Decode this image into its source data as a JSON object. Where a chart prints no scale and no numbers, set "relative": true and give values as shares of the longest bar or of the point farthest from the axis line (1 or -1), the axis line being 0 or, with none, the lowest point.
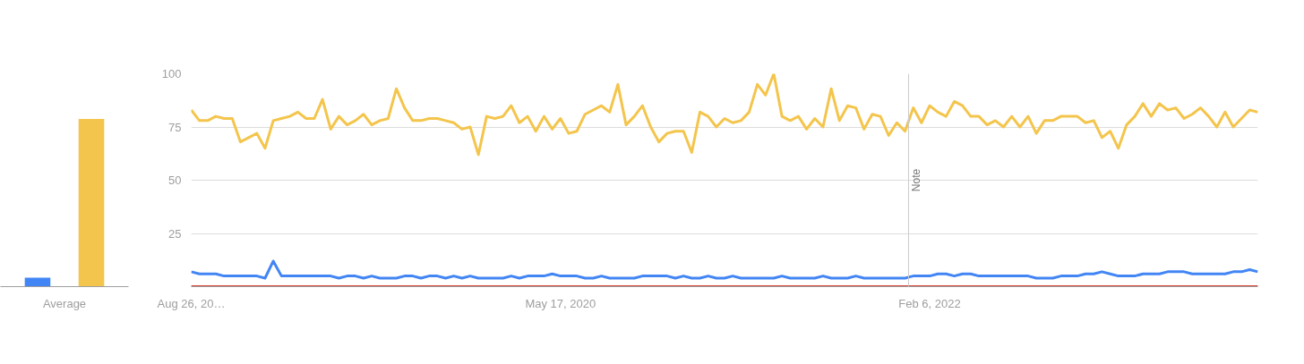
{
  "chart_data": [
    {
      "type": "bar",
      "relative": true,
      "categories": [
        "Average"
      ],
      "series": [
        {
          "color": "#4285f4",
          "values": [
            0.053
          ]
        },
        {
          "color": "#f4c54c",
          "values": [
            1
          ]
        }
      ]
    },
    {
      "type": "line",
      "grid": "y",
      "xlim": [
        "2018-08-26",
        "2023-08-20"
      ],
      "ylim": [
        0,
        100
      ],
      "yticks": [
        25,
        50,
        75,
        100
      ],
      "xticks": [
        {
          "value": "2018-08-26",
          "label": "Aug 26, 20…"
        },
        {
          "value": "2020-05-17",
          "label": "May 17, 2020"
        },
        {
          "value": "2022-02-06",
          "label": "Feb 6, 2022"
        }
      ],
      "ref_lines": [
        {
          "axis": "x",
          "value": "2022-01-01",
          "label": "Note",
          "color": "#cccccc"
        }
      ],
      "x": [
        "2018-08-26",
        "2018-09-09",
        "2018-09-23",
        "2018-10-07",
        "2018-10-21",
        "2018-11-04",
        "2018-11-18",
        "2018-12-02",
        "2018-12-16",
        "2018-12-30",
        "2019-01-13",
        "2019-01-27",
        "2019-02-10",
        "2019-02-24",
        "2019-03-10",
        "2019-03-24",
        "2019-04-07",
        "2019-04-21",
        "2019-05-05",
        "2019-05-19",
        "2019-06-02",
        "2019-06-16",
        "2019-06-30",
        "2019-07-14",
        "2019-07-28",
        "2019-08-11",
        "2019-08-25",
        "2019-09-08",
        "2019-09-22",
        "2019-10-06",
        "2019-10-20",
        "2019-11-03",
        "2019-11-17",
        "2019-12-01",
        "2019-12-15",
        "2019-12-29",
        "2020-01-12",
        "2020-01-26",
        "2020-02-09",
        "2020-02-23",
        "2020-03-08",
        "2020-03-22",
        "2020-04-05",
        "2020-04-19",
        "2020-05-03",
        "2020-05-17",
        "2020-05-31",
        "2020-06-14",
        "2020-06-28",
        "2020-07-12",
        "2020-07-26",
        "2020-08-09",
        "2020-08-23",
        "2020-09-06",
        "2020-09-20",
        "2020-10-04",
        "2020-10-18",
        "2020-11-01",
        "2020-11-15",
        "2020-11-29",
        "2020-12-13",
        "2020-12-27",
        "2021-01-10",
        "2021-01-24",
        "2021-02-07",
        "2021-02-21",
        "2021-03-07",
        "2021-03-21",
        "2021-04-04",
        "2021-04-18",
        "2021-05-02",
        "2021-05-16",
        "2021-05-30",
        "2021-06-13",
        "2021-06-27",
        "2021-07-11",
        "2021-07-25",
        "2021-08-08",
        "2021-08-22",
        "2021-09-05",
        "2021-09-19",
        "2021-10-03",
        "2021-10-17",
        "2021-10-31",
        "2021-11-14",
        "2021-11-28",
        "2021-12-12",
        "2021-12-26",
        "2022-01-09",
        "2022-01-23",
        "2022-02-06",
        "2022-02-20",
        "2022-03-06",
        "2022-03-20",
        "2022-04-03",
        "2022-04-17",
        "2022-05-01",
        "2022-05-15",
        "2022-05-29",
        "2022-06-12",
        "2022-06-26",
        "2022-07-10",
        "2022-07-24",
        "2022-08-07",
        "2022-08-21",
        "2022-09-04",
        "2022-09-18",
        "2022-10-02",
        "2022-10-16",
        "2022-10-30",
        "2022-11-13",
        "2022-11-27",
        "2022-12-11",
        "2022-12-25",
        "2023-01-08",
        "2023-01-22",
        "2023-02-05",
        "2023-02-19",
        "2023-03-05",
        "2023-03-19",
        "2023-04-02",
        "2023-04-16",
        "2023-04-30",
        "2023-05-14",
        "2023-05-28",
        "2023-06-11",
        "2023-06-25",
        "2023-07-09",
        "2023-07-23",
        "2023-08-06",
        "2023-08-20"
      ],
      "series": [
        {
          "color": "#4285f4",
          "values": [
            7,
            6,
            6,
            6,
            5,
            5,
            5,
            5,
            5,
            4,
            12,
            5,
            5,
            5,
            5,
            5,
            5,
            5,
            4,
            5,
            5,
            4,
            5,
            4,
            4,
            4,
            5,
            5,
            4,
            5,
            5,
            4,
            5,
            4,
            5,
            4,
            4,
            4,
            4,
            5,
            4,
            5,
            5,
            5,
            6,
            5,
            5,
            5,
            4,
            4,
            5,
            4,
            4,
            4,
            4,
            5,
            5,
            5,
            5,
            4,
            5,
            4,
            4,
            5,
            4,
            4,
            5,
            4,
            4,
            4,
            4,
            4,
            5,
            4,
            4,
            4,
            4,
            5,
            4,
            4,
            4,
            5,
            4,
            4,
            4,
            4,
            4,
            4,
            5,
            5,
            5,
            6,
            6,
            5,
            6,
            6,
            5,
            5,
            5,
            5,
            5,
            5,
            5,
            4,
            4,
            4,
            5,
            5,
            5,
            6,
            6,
            7,
            6,
            5,
            5,
            5,
            6,
            6,
            6,
            7,
            7,
            7,
            6,
            6,
            6,
            6,
            6,
            7,
            7,
            8,
            7
          ]
        },
        {
          "color": "#db4437",
          "values": [
            0,
            0,
            0,
            0,
            0,
            0,
            0,
            0,
            0,
            0,
            0,
            0,
            0,
            0,
            0,
            0,
            0,
            0,
            0,
            0,
            0,
            0,
            0,
            0,
            0,
            0,
            0,
            0,
            0,
            0,
            0,
            0,
            0,
            0,
            0,
            0,
            0,
            0,
            0,
            0,
            0,
            0,
            0,
            0,
            0,
            0,
            0,
            0,
            0,
            0,
            0,
            0,
            0,
            0,
            0,
            0,
            0,
            0,
            0,
            0,
            0,
            0,
            0,
            0,
            0,
            0,
            0,
            0,
            0,
            0,
            0,
            0,
            0,
            0,
            0,
            0,
            0,
            0,
            0,
            0,
            0,
            0,
            0,
            0,
            0,
            0,
            0,
            0,
            0,
            0,
            0,
            0,
            0,
            0,
            0,
            0,
            0,
            0,
            0,
            0,
            0,
            0,
            0,
            0,
            0,
            0,
            0,
            0,
            0,
            0,
            0,
            0,
            0,
            0,
            0,
            0,
            0,
            0,
            0,
            0,
            0,
            0,
            0,
            0,
            0,
            0,
            0,
            0,
            0,
            0,
            0
          ]
        },
        {
          "color": "#f4c54c",
          "values": [
            83,
            78,
            78,
            80,
            79,
            79,
            68,
            70,
            72,
            65,
            78,
            79,
            80,
            82,
            79,
            79,
            88,
            74,
            80,
            76,
            78,
            81,
            76,
            78,
            79,
            93,
            84,
            78,
            78,
            79,
            79,
            78,
            77,
            74,
            75,
            62,
            80,
            79,
            80,
            85,
            77,
            80,
            73,
            80,
            74,
            79,
            72,
            73,
            81,
            83,
            85,
            82,
            95,
            76,
            80,
            85,
            75,
            68,
            72,
            73,
            73,
            63,
            82,
            80,
            75,
            79,
            77,
            78,
            82,
            95,
            90,
            100,
            80,
            78,
            80,
            74,
            79,
            75,
            93,
            78,
            85,
            84,
            74,
            81,
            80,
            71,
            77,
            73,
            84,
            77,
            85,
            82,
            80,
            87,
            85,
            80,
            80,
            76,
            78,
            75,
            80,
            75,
            80,
            72,
            78,
            78,
            80,
            80,
            80,
            77,
            78,
            70,
            73,
            65,
            76,
            80,
            86,
            80,
            86,
            83,
            84,
            79,
            81,
            84,
            80,
            75,
            82,
            75,
            79,
            83,
            82
          ]
        }
      ]
    }
  ]
}
